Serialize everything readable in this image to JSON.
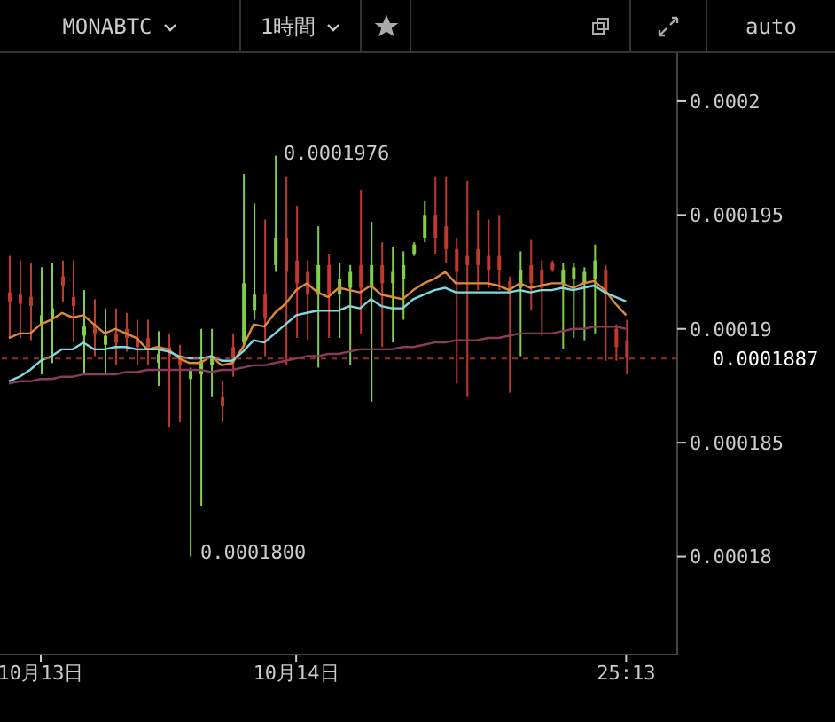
{
  "chart_data": {
    "type": "candlestick",
    "title": "MONABTC",
    "subtitle": "1時間",
    "categories": [
      null,
      null,
      null,
      "10月13日",
      null,
      null,
      null,
      null,
      null,
      null,
      null,
      null,
      null,
      null,
      null,
      null,
      null,
      null,
      null,
      null,
      null,
      null,
      null,
      null,
      null,
      null,
      null,
      "10月14日",
      null,
      null,
      null,
      null,
      null,
      null,
      null,
      null,
      null,
      null,
      null,
      null,
      null,
      null,
      null,
      null,
      null,
      null,
      null,
      null,
      null,
      null,
      null,
      null,
      null,
      null,
      null,
      null,
      null,
      null,
      "25:13"
    ],
    "ohlc": [
      [
        0.0001916,
        0.0001932,
        0.0001896,
        0.0001912
      ],
      [
        0.0001915,
        0.000193,
        0.0001896,
        0.0001911
      ],
      [
        0.0001914,
        0.0001929,
        0.0001895,
        0.000191
      ],
      [
        0.0001902,
        0.0001927,
        0.000188,
        0.0001906
      ],
      [
        0.0001905,
        0.0001929,
        0.0001885,
        0.0001909
      ],
      [
        0.0001923,
        0.000193,
        0.0001912,
        0.0001919
      ],
      [
        0.0001914,
        0.000193,
        0.0001894,
        0.000191
      ],
      [
        0.0001897,
        0.0001917,
        0.000188,
        0.0001901
      ],
      [
        0.0001902,
        0.0001913,
        0.0001888,
        0.0001898
      ],
      [
        0.0001893,
        0.0001909,
        0.000188,
        0.0001897
      ],
      [
        0.0001898,
        0.0001909,
        0.0001884,
        0.0001894
      ],
      [
        0.00019,
        0.0001907,
        0.000189,
        0.0001896
      ],
      [
        0.0001896,
        0.0001904,
        0.0001884,
        0.0001892
      ],
      [
        0.0001896,
        0.0001904,
        0.0001884,
        0.0001892
      ],
      [
        0.0001885,
        0.0001899,
        0.0001875,
        0.0001889
      ],
      [
        0.0001892,
        0.0001898,
        0.0001857,
        0.0001888
      ],
      [
        0.0001888,
        0.0001893,
        0.0001859,
        0.0001884
      ],
      [
        0.0001878,
        0.0001883,
        0.00018,
        0.0001882
      ],
      [
        0.000188,
        0.00019,
        0.0001822,
        0.0001886
      ],
      [
        0.0001884,
        0.00019,
        0.000187,
        0.0001888
      ],
      [
        0.000187,
        0.0001877,
        0.0001859,
        0.0001866
      ],
      [
        0.0001892,
        0.0001898,
        0.0001879,
        0.0001886
      ],
      [
        0.0001894,
        0.0001968,
        0.0001892,
        0.000192
      ],
      [
        0.0001908,
        0.0001955,
        0.0001904,
        0.0001915
      ],
      [
        0.0001915,
        0.0001948,
        0.0001888,
        0.0001905
      ],
      [
        0.0001928,
        0.0001976,
        0.0001925,
        0.000194
      ],
      [
        0.000194,
        0.0001967,
        0.0001884,
        0.0001925
      ],
      [
        0.000193,
        0.0001954,
        0.0001896,
        0.000192
      ],
      [
        0.0001925,
        0.000193,
        0.0001895,
        0.0001915
      ],
      [
        0.0001915,
        0.0001945,
        0.0001883,
        0.0001928
      ],
      [
        0.0001928,
        0.0001933,
        0.0001896,
        0.0001915
      ],
      [
        0.0001915,
        0.0001929,
        0.0001896,
        0.0001922
      ],
      [
        0.0001918,
        0.0001928,
        0.0001884,
        0.0001925
      ],
      [
        0.0001928,
        0.0001961,
        0.0001898,
        0.0001918
      ],
      [
        0.0001918,
        0.0001947,
        0.0001868,
        0.0001928
      ],
      [
        0.0001928,
        0.0001938,
        0.0001892,
        0.000192
      ],
      [
        0.000192,
        0.0001936,
        0.0001894,
        0.0001925
      ],
      [
        0.0001922,
        0.0001934,
        0.0001904,
        0.0001928
      ],
      [
        0.0001933,
        0.0001938,
        0.0001932,
        0.0001937
      ],
      [
        0.000194,
        0.0001956,
        0.0001938,
        0.000195
      ],
      [
        0.000195,
        0.0001967,
        0.0001933,
        0.000194
      ],
      [
        0.0001945,
        0.0001967,
        0.0001929,
        0.0001935
      ],
      [
        0.0001935,
        0.000194,
        0.0001876,
        0.0001925
      ],
      [
        0.0001932,
        0.0001965,
        0.000187,
        0.0001928
      ],
      [
        0.0001935,
        0.0001952,
        0.0001917,
        0.0001928
      ],
      [
        0.0001932,
        0.0001948,
        0.0001918,
        0.0001926
      ],
      [
        0.0001932,
        0.000195,
        0.0001917,
        0.0001926
      ],
      [
        0.0001921,
        0.0001923,
        0.0001872,
        0.0001915
      ],
      [
        0.0001918,
        0.0001934,
        0.0001888,
        0.0001926
      ],
      [
        0.0001928,
        0.0001939,
        0.0001908,
        0.000192
      ],
      [
        0.0001926,
        0.000193,
        0.0001897,
        0.0001918
      ],
      [
        0.0001929,
        0.000193,
        0.0001925,
        0.0001926
      ],
      [
        0.000192,
        0.0001929,
        0.0001891,
        0.0001926
      ],
      [
        0.0001922,
        0.0001929,
        0.0001896,
        0.0001927
      ],
      [
        0.000192,
        0.0001927,
        0.0001895,
        0.0001925
      ],
      [
        0.0001922,
        0.0001937,
        0.0001898,
        0.000193
      ],
      [
        0.0001926,
        0.0001928,
        0.0001886,
        0.0001915
      ],
      [
        0.00019,
        0.0001902,
        0.0001886,
        0.0001892
      ],
      [
        0.0001895,
        0.0001904,
        0.000188,
        0.0001887
      ]
    ],
    "series": [
      {
        "type": "line",
        "color": "#e08a3c",
        "values": [
          0.0001896,
          0.0001898,
          0.0001898,
          0.0001902,
          0.0001904,
          0.0001907,
          0.0001905,
          0.0001906,
          0.0001902,
          0.0001898,
          0.00019,
          0.0001898,
          0.0001896,
          0.0001891,
          0.0001892,
          0.0001891,
          0.0001887,
          0.0001885,
          0.0001885,
          0.0001888,
          0.0001884,
          0.0001885,
          0.0001892,
          0.0001902,
          0.0001901,
          0.0001907,
          0.0001911,
          0.0001917,
          0.000192,
          0.0001916,
          0.0001914,
          0.0001918,
          0.0001917,
          0.0001916,
          0.0001919,
          0.0001915,
          0.0001914,
          0.0001913,
          0.0001917,
          0.000192,
          0.0001922,
          0.0001925,
          0.000192,
          0.000192,
          0.000192,
          0.000192,
          0.0001919,
          0.0001917,
          0.000192,
          0.0001918,
          0.0001919,
          0.000192,
          0.000192,
          0.0001918,
          0.000192,
          0.0001921,
          0.0001917,
          0.0001911,
          0.0001906
        ]
      },
      {
        "type": "line",
        "color": "#80d8e0",
        "values": [
          0.0001877,
          0.0001879,
          0.0001882,
          0.0001886,
          0.0001888,
          0.0001891,
          0.0001891,
          0.0001894,
          0.0001891,
          0.0001891,
          0.0001892,
          0.0001892,
          0.0001891,
          0.0001891,
          0.0001891,
          0.000189,
          0.0001888,
          0.0001887,
          0.0001887,
          0.0001888,
          0.0001886,
          0.0001886,
          0.000189,
          0.0001895,
          0.0001894,
          0.0001898,
          0.0001902,
          0.0001906,
          0.0001907,
          0.0001908,
          0.0001908,
          0.0001908,
          0.000191,
          0.0001909,
          0.0001913,
          0.000191,
          0.0001909,
          0.0001909,
          0.0001913,
          0.0001915,
          0.0001917,
          0.0001918,
          0.0001916,
          0.0001916,
          0.0001916,
          0.0001916,
          0.0001916,
          0.0001916,
          0.0001917,
          0.0001916,
          0.0001917,
          0.0001917,
          0.0001918,
          0.0001917,
          0.0001918,
          0.0001919,
          0.0001916,
          0.0001914,
          0.0001912
        ]
      },
      {
        "type": "line",
        "color": "#8a3a5c",
        "values": [
          0.0001876,
          0.0001877,
          0.0001877,
          0.0001878,
          0.0001878,
          0.0001879,
          0.0001879,
          0.000188,
          0.000188,
          0.000188,
          0.000188,
          0.0001881,
          0.0001881,
          0.0001882,
          0.0001882,
          0.0001882,
          0.0001882,
          0.0001882,
          0.0001882,
          0.0001881,
          0.0001882,
          0.0001882,
          0.0001883,
          0.0001884,
          0.0001884,
          0.0001885,
          0.0001886,
          0.0001887,
          0.0001888,
          0.0001888,
          0.0001889,
          0.0001889,
          0.000189,
          0.0001891,
          0.0001891,
          0.0001891,
          0.0001891,
          0.0001892,
          0.0001892,
          0.0001893,
          0.0001894,
          0.0001894,
          0.0001895,
          0.0001895,
          0.0001895,
          0.0001896,
          0.0001896,
          0.0001897,
          0.0001898,
          0.0001898,
          0.0001898,
          0.0001898,
          0.0001899,
          0.00019,
          0.00019,
          0.0001901,
          0.0001901,
          0.0001901,
          0.00019
        ]
      }
    ],
    "ylim": [
      0.0001757,
      0.0002021
    ],
    "yticks": [
      0.00018,
      0.000185,
      0.00019,
      0.000195,
      0.0002
    ],
    "ref_lines": [
      {
        "axis": "y",
        "value": 0.0001887,
        "label": "0.0001887",
        "color": "#c0392b",
        "line_style": "dashed"
      }
    ],
    "annotations": [
      "0.0001976",
      "0.0001800",
      "auto"
    ],
    "marker": "none"
  }
}
